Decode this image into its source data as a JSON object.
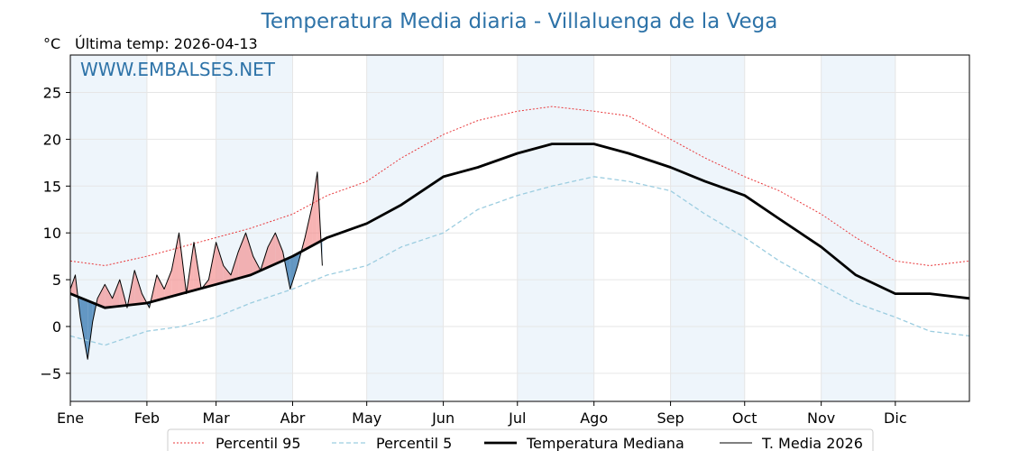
{
  "header": {
    "title": "Temperatura Media diaria - Villaluenga de la Vega",
    "unit": "°C",
    "last_temp_label": "Última temp: 2026-04-13",
    "watermark": "WWW.EMBALSES.NET"
  },
  "colors": {
    "p95": "#e8383b",
    "p5": "#9ccde0",
    "median": "#000000",
    "year": "#000000",
    "above_fill": "#f28b8b",
    "below_fill": "#4a86b8",
    "band": "#eef5fb",
    "title": "#2e73a8"
  },
  "chart_data": {
    "type": "line",
    "title": "Temperatura Media diaria - Villaluenga de la Vega",
    "ylabel": "°C",
    "ylim": [
      -8,
      29
    ],
    "xlim_days": [
      1,
      365
    ],
    "yticks": [
      -5,
      0,
      5,
      10,
      15,
      20,
      25
    ],
    "months": [
      "Ene",
      "Feb",
      "Mar",
      "Abr",
      "May",
      "Jun",
      "Jul",
      "Ago",
      "Sep",
      "Oct",
      "Nov",
      "Dic"
    ],
    "month_start_days": [
      1,
      32,
      60,
      91,
      121,
      152,
      182,
      213,
      244,
      274,
      305,
      335
    ],
    "grid": true,
    "legend_position": "bottom-center",
    "series": [
      {
        "name": "Percentil 95",
        "style": "dotted",
        "x": [
          1,
          15,
          32,
          46,
          60,
          74,
          91,
          105,
          121,
          135,
          152,
          166,
          182,
          196,
          213,
          227,
          244,
          258,
          274,
          288,
          305,
          319,
          335,
          349,
          365
        ],
        "values": [
          7.0,
          6.5,
          7.5,
          8.5,
          9.5,
          10.5,
          12.0,
          14.0,
          15.5,
          18.0,
          20.5,
          22.0,
          23.0,
          23.5,
          23.0,
          22.5,
          20.0,
          18.0,
          16.0,
          14.5,
          12.0,
          9.5,
          7.0,
          6.5,
          7.0
        ]
      },
      {
        "name": "Percentil 5",
        "style": "dashed",
        "x": [
          1,
          15,
          32,
          46,
          60,
          74,
          91,
          105,
          121,
          135,
          152,
          166,
          182,
          196,
          213,
          227,
          244,
          258,
          274,
          288,
          305,
          319,
          335,
          349,
          365
        ],
        "values": [
          -1.0,
          -2.0,
          -0.5,
          0.0,
          1.0,
          2.5,
          4.0,
          5.5,
          6.5,
          8.5,
          10.0,
          12.5,
          14.0,
          15.0,
          16.0,
          15.5,
          14.5,
          12.0,
          9.5,
          7.0,
          4.5,
          2.5,
          1.0,
          -0.5,
          -1.0
        ]
      },
      {
        "name": "Temperatura Mediana",
        "style": "thick",
        "x": [
          1,
          15,
          32,
          46,
          60,
          74,
          91,
          105,
          121,
          135,
          152,
          166,
          182,
          196,
          213,
          227,
          244,
          258,
          274,
          288,
          305,
          319,
          335,
          349,
          365
        ],
        "values": [
          3.5,
          2.0,
          2.5,
          3.5,
          4.5,
          5.5,
          7.5,
          9.5,
          11.0,
          13.0,
          16.0,
          17.0,
          18.5,
          19.5,
          19.5,
          18.5,
          17.0,
          15.5,
          14.0,
          11.5,
          8.5,
          5.5,
          3.5,
          3.5,
          3.0
        ]
      },
      {
        "name": "T. Media 2026",
        "style": "thin",
        "x": [
          1,
          3,
          5,
          8,
          10,
          12,
          15,
          18,
          21,
          24,
          27,
          30,
          33,
          36,
          39,
          42,
          45,
          48,
          51,
          54,
          57,
          60,
          63,
          66,
          69,
          72,
          75,
          78,
          81,
          84,
          87,
          90,
          93,
          96,
          99,
          101,
          103
        ],
        "values": [
          4.0,
          5.5,
          1.0,
          -3.5,
          0.5,
          3.0,
          4.5,
          3.0,
          5.0,
          2.0,
          6.0,
          3.5,
          2.0,
          5.5,
          4.0,
          6.0,
          10.0,
          3.5,
          9.0,
          4.0,
          5.0,
          9.0,
          6.5,
          5.5,
          8.0,
          10.0,
          7.5,
          6.0,
          8.5,
          10.0,
          8.0,
          4.0,
          6.5,
          9.5,
          13.0,
          16.5,
          6.5
        ]
      }
    ]
  },
  "legend": {
    "p95": "Percentil 95",
    "p5": "Percentil 5",
    "median": "Temperatura Mediana",
    "year": "T. Media 2026"
  }
}
